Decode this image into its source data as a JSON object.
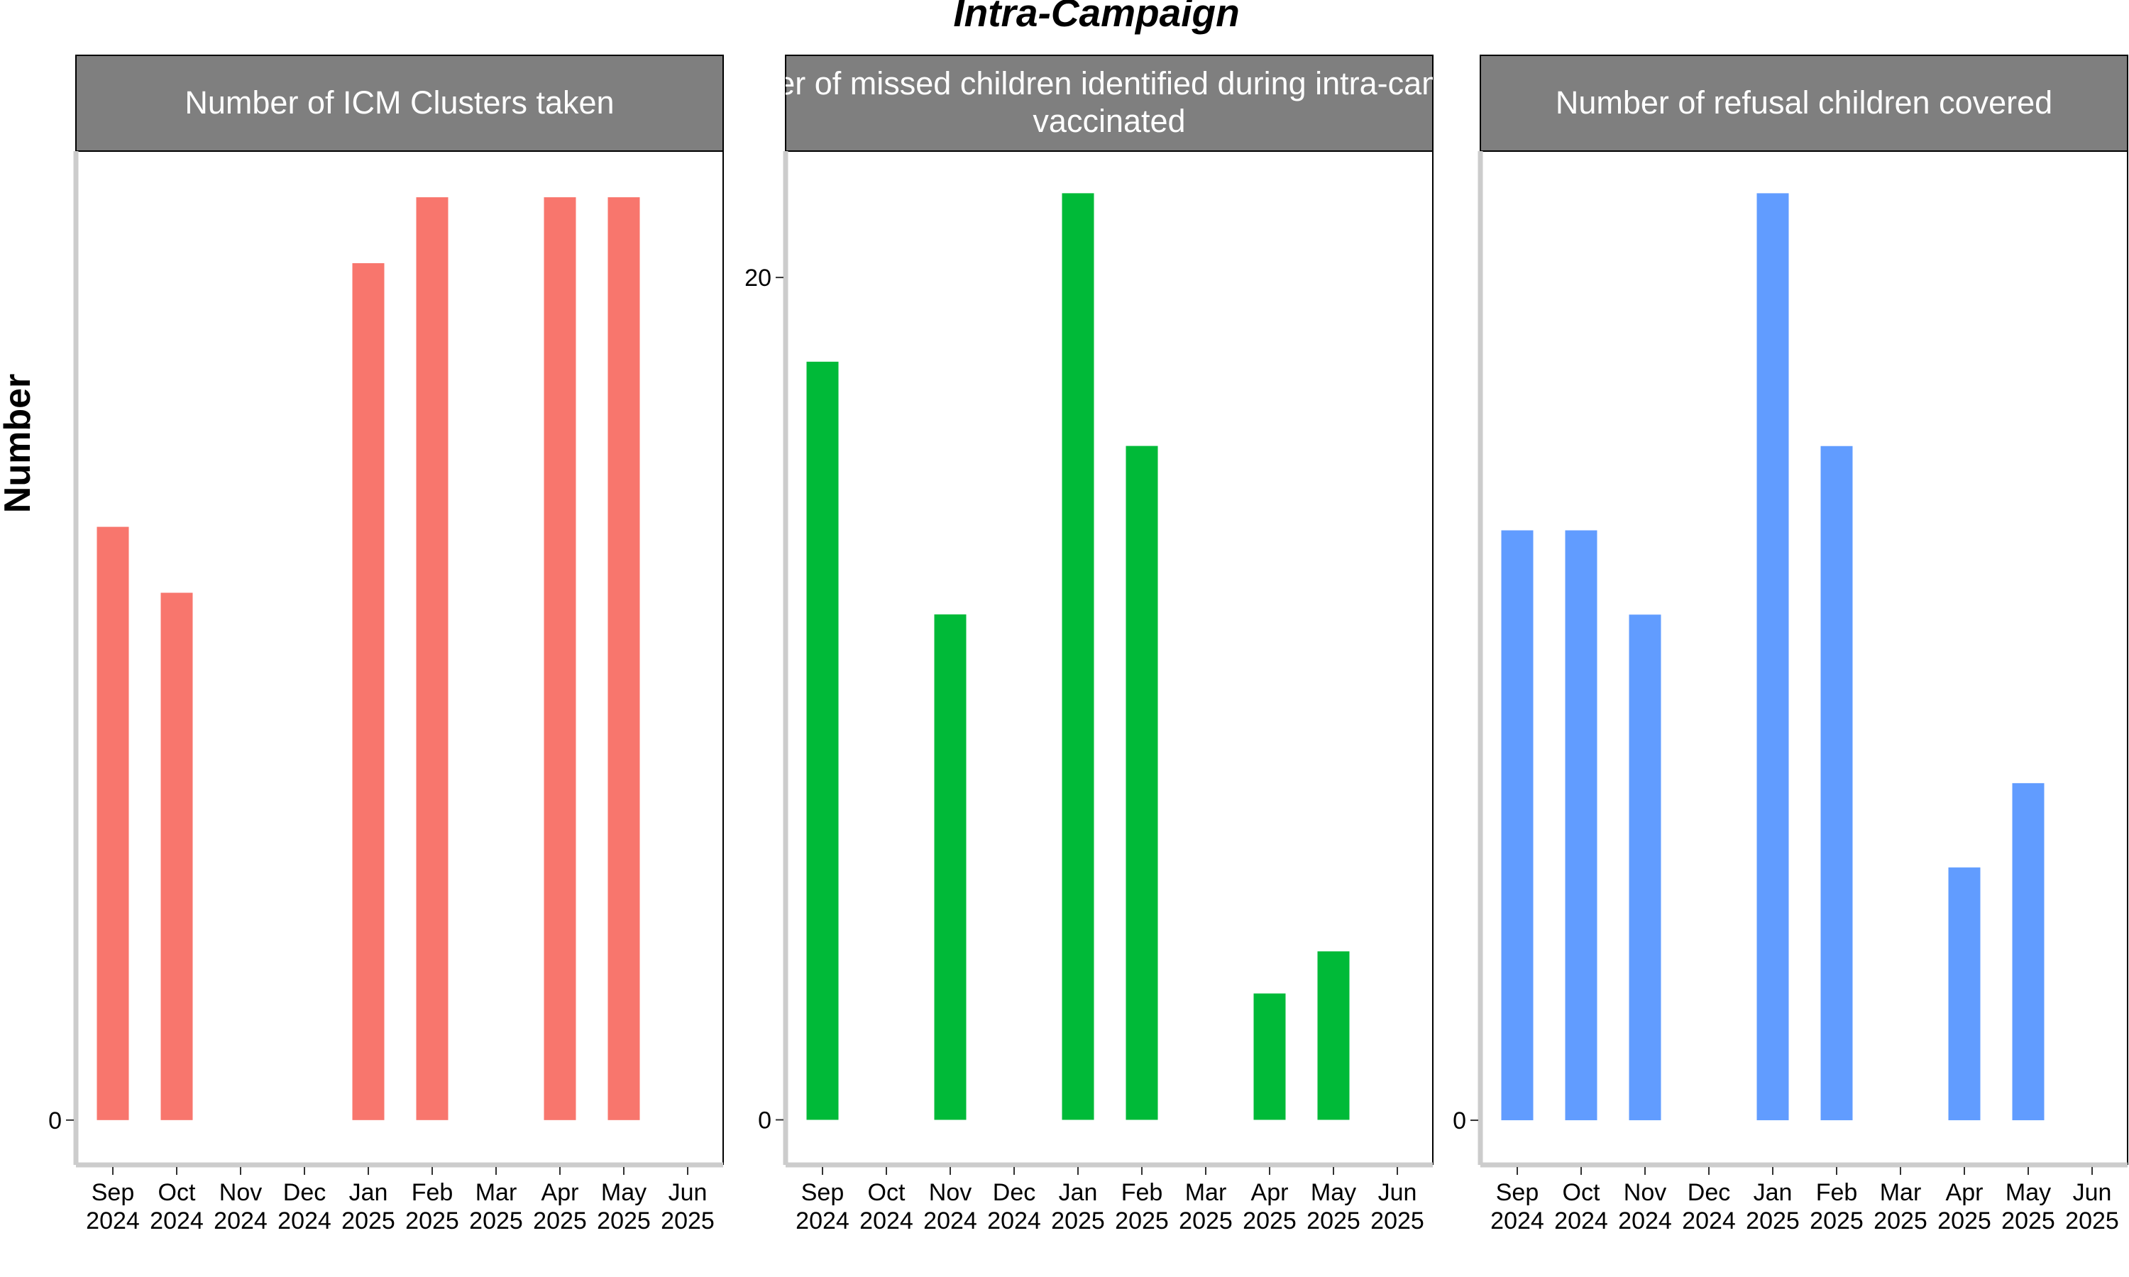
{
  "figure": {
    "title": "Intra-Campaign",
    "ylabel": "Number"
  },
  "chart_data": [
    {
      "type": "bar",
      "title": "Number of ICM Clusters taken",
      "title_lines": [
        "Number of ICM Clusters taken"
      ],
      "color": "#F8766D",
      "categories": [
        "Sep\n2024",
        "Oct\n2024",
        "Nov\n2024",
        "Dec\n2024",
        "Jan\n2025",
        "Feb\n2025",
        "Mar\n2025",
        "Apr\n2025",
        "May\n2025",
        "Jun\n2025"
      ],
      "values": [
        9,
        8,
        null,
        null,
        13,
        14,
        null,
        14,
        14,
        null
      ],
      "yticks": [
        0
      ],
      "ylim": [
        -0.68,
        14.7
      ],
      "grid": false
    },
    {
      "type": "bar",
      "title": "Number of missed children identified during intra-campaign vaccinated",
      "title_lines": [
        "Number of missed children identified during intra-campaign",
        "vaccinated"
      ],
      "color": "#00BA38",
      "categories": [
        "Sep\n2024",
        "Oct\n2024",
        "Nov\n2024",
        "Dec\n2024",
        "Jan\n2025",
        "Feb\n2025",
        "Mar\n2025",
        "Apr\n2025",
        "May\n2025",
        "Jun\n2025"
      ],
      "values": [
        18,
        null,
        12,
        null,
        22,
        16,
        null,
        3,
        4,
        null
      ],
      "yticks": [
        0,
        20
      ],
      "ylim": [
        -1.07,
        23.0
      ],
      "grid": false
    },
    {
      "type": "bar",
      "title": "Number of refusal children covered",
      "title_lines": [
        "Number of refusal children covered"
      ],
      "color": "#619CFF",
      "categories": [
        "Sep\n2024",
        "Oct\n2024",
        "Nov\n2024",
        "Dec\n2024",
        "Jan\n2025",
        "Feb\n2025",
        "Mar\n2025",
        "Apr\n2025",
        "May\n2025",
        "Jun\n2025"
      ],
      "values": [
        7,
        7,
        6,
        null,
        11,
        8,
        null,
        3,
        4,
        null
      ],
      "yticks": [
        0
      ],
      "ylim": [
        -0.53,
        11.5
      ],
      "grid": false
    }
  ]
}
